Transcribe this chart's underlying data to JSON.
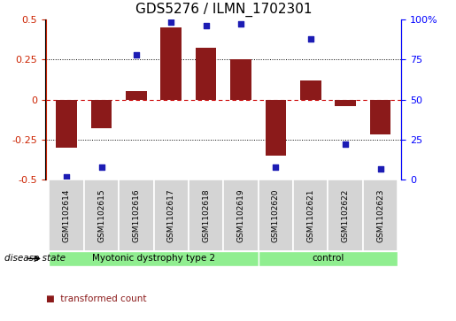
{
  "title": "GDS5276 / ILMN_1702301",
  "samples": [
    "GSM1102614",
    "GSM1102615",
    "GSM1102616",
    "GSM1102617",
    "GSM1102618",
    "GSM1102619",
    "GSM1102620",
    "GSM1102621",
    "GSM1102622",
    "GSM1102623"
  ],
  "transformed_count": [
    -0.3,
    -0.18,
    0.05,
    0.45,
    0.32,
    0.25,
    -0.35,
    0.12,
    -0.04,
    -0.22
  ],
  "percentile_rank": [
    2,
    8,
    78,
    98,
    96,
    97,
    8,
    88,
    22,
    7
  ],
  "ylim_left": [
    -0.5,
    0.5
  ],
  "ylim_right": [
    0,
    100
  ],
  "yticks_left": [
    -0.5,
    -0.25,
    0.0,
    0.25,
    0.5
  ],
  "yticks_right": [
    0,
    25,
    50,
    75,
    100
  ],
  "ytick_labels_left": [
    "-0.5",
    "-0.25",
    "0",
    "0.25",
    "0.5"
  ],
  "ytick_labels_right": [
    "0",
    "25",
    "50",
    "75",
    "100%"
  ],
  "bar_color": "#8B1A1A",
  "scatter_color": "#1C1CB4",
  "disease_groups": [
    {
      "label": "Myotonic dystrophy type 2",
      "n_samples": 6,
      "color": "#90EE90"
    },
    {
      "label": "control",
      "n_samples": 4,
      "color": "#90EE90"
    }
  ],
  "disease_state_label": "disease state",
  "plot_bg": "#ffffff",
  "cell_bg": "#d4d4d4",
  "cell_edge": "#ffffff"
}
